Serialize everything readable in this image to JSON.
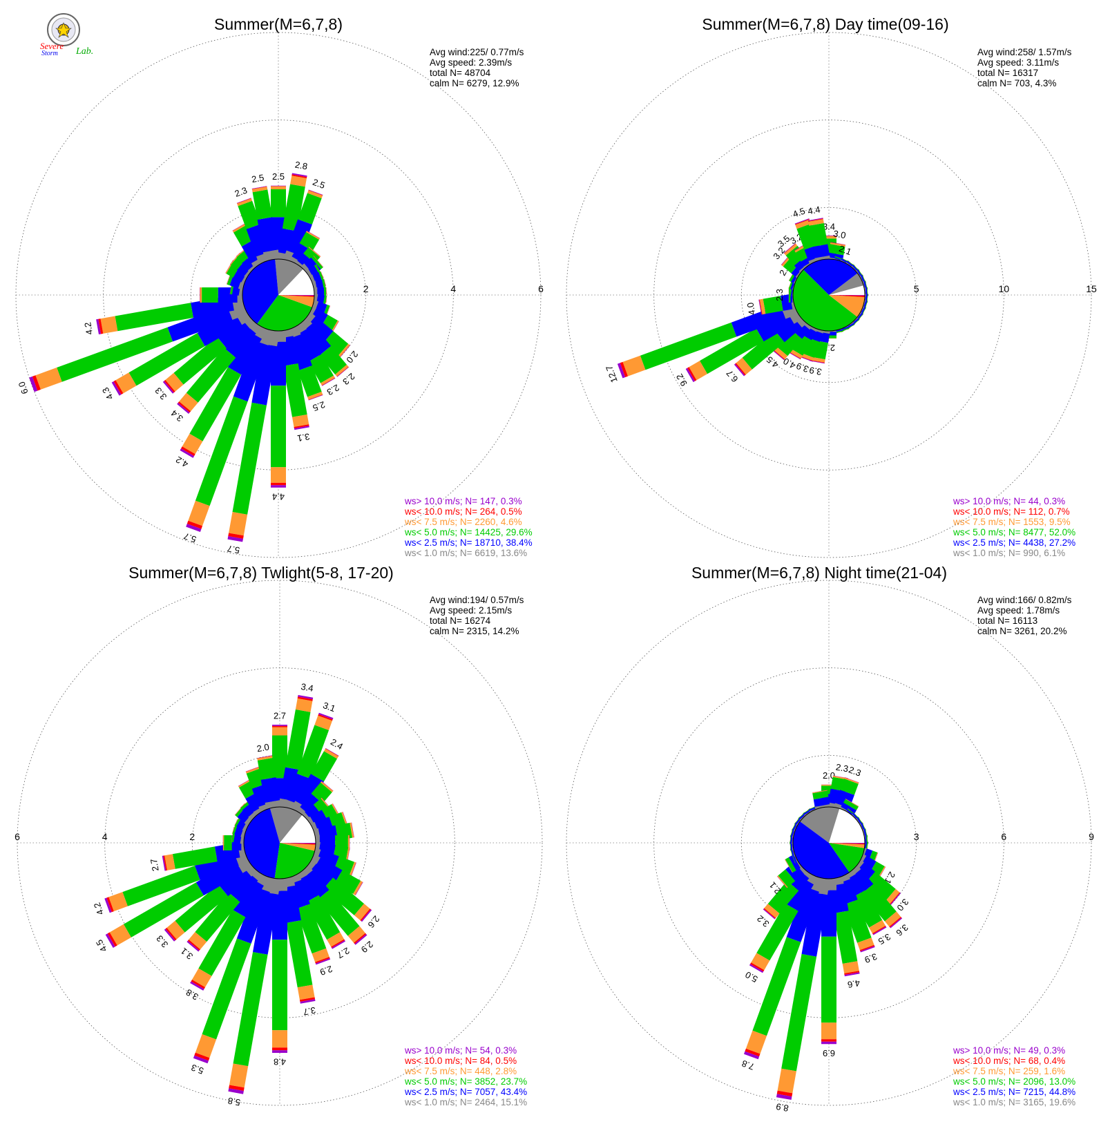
{
  "colors": {
    "gt10": "#9900cc",
    "lt10": "#ff0000",
    "lt7_5": "#ff9933",
    "lt5": "#00cc00",
    "lt2_5": "#0000ff",
    "lt1": "#888888",
    "calm": "#ffffff"
  },
  "logo": {
    "icon": "severe-storm-lab-seal-icon",
    "line1": "Severe",
    "line2": "Storm",
    "line3": "Lab."
  },
  "chart_data": [
    {
      "type": "wind-rose",
      "title": "Summer(M=6,7,8)",
      "panel": "top-left",
      "stats": [
        "Avg wind:225/ 0.77m/s",
        "Avg speed: 2.39m/s",
        "total N=     48704",
        "calm N=   6279,  12.9%"
      ],
      "ring_values": [
        2,
        4,
        6
      ],
      "ring_labels": [
        "2",
        "4",
        "6"
      ],
      "ring_label_side": "right",
      "max": 6,
      "legend": [
        "ws> 10.0 m/s; N=   147,  0.3%",
        "ws< 10.0 m/s; N=   264,  0.5%",
        "ws<  7.5 m/s; N=  2260,  4.6%",
        "ws<  5.0 m/s; N= 14425, 29.6%",
        "ws<  2.5 m/s; N= 18710, 38.4%",
        "ws<  1.0 m/s; N=  6619, 13.6%"
      ],
      "calm_pie": [
        6279,
        6619,
        18710,
        14425,
        2260,
        264,
        147
      ],
      "directions_deg": [
        0,
        10,
        20,
        30,
        40,
        50,
        60,
        70,
        80,
        90,
        100,
        110,
        120,
        130,
        140,
        150,
        160,
        170,
        180,
        190,
        200,
        210,
        220,
        230,
        240,
        250,
        260,
        270,
        280,
        290,
        300,
        310,
        320,
        330,
        340,
        350
      ],
      "totals": [
        2.5,
        2.8,
        2.5,
        1.6,
        1.3,
        1.2,
        1.1,
        1.1,
        1.1,
        1.1,
        1.1,
        1.2,
        1.5,
        2.0,
        2.3,
        2.3,
        2.5,
        3.1,
        4.4,
        5.7,
        5.7,
        4.2,
        3.4,
        3.3,
        4.3,
        6.0,
        4.2,
        1.8,
        1.1,
        1.2,
        1.3,
        1.3,
        1.3,
        1.8,
        2.3,
        2.5
      ],
      "bar_labels": [
        "2.5",
        "2.8",
        "2.5",
        "",
        "",
        "",
        "",
        "",
        "",
        "",
        "",
        "",
        "",
        "2.0",
        "2.3",
        "2.3",
        "2.5",
        "3.1",
        "4.4",
        "5.7",
        "5.7",
        "4.2",
        "3.4",
        "3.3",
        "4.3",
        "6.0",
        "4.2",
        "",
        "",
        "",
        "",
        "",
        "",
        "",
        "2.3",
        "2.5"
      ]
    },
    {
      "type": "wind-rose",
      "title": "Summer(M=6,7,8) Day time(09-16)",
      "panel": "top-right",
      "stats": [
        "Avg wind:258/ 1.57m/s",
        "Avg speed: 3.11m/s",
        "total N=     16317",
        "calm N=    703,   4.3%"
      ],
      "ring_values": [
        5,
        10,
        15
      ],
      "ring_labels": [
        "5",
        "10",
        "15"
      ],
      "ring_label_side": "right",
      "max": 15,
      "legend": [
        "ws> 10.0 m/s; N=    44,  0.3%",
        "ws< 10.0 m/s; N=   112,  0.7%",
        "ws<  7.5 m/s; N=  1553,  9.5%",
        "ws<  5.0 m/s; N=  8477, 52.0%",
        "ws<  2.5 m/s; N=  4438, 27.2%",
        "ws<  1.0 m/s; N=   990,  6.1%"
      ],
      "calm_pie": [
        703,
        990,
        4438,
        8477,
        1553,
        112,
        44
      ],
      "directions_deg": [
        0,
        10,
        20,
        30,
        40,
        50,
        60,
        70,
        80,
        90,
        100,
        110,
        120,
        130,
        140,
        150,
        160,
        170,
        180,
        190,
        200,
        210,
        220,
        230,
        240,
        250,
        260,
        270,
        280,
        290,
        300,
        310,
        320,
        330,
        340,
        350
      ],
      "totals": [
        3.4,
        3.0,
        2.1,
        1.2,
        0.9,
        0.7,
        0.6,
        0.6,
        0.6,
        0.6,
        0.5,
        0.6,
        0.7,
        0.8,
        0.9,
        1.1,
        1.4,
        1.8,
        2.5,
        3.9,
        3.9,
        4.0,
        4.5,
        6.7,
        9.2,
        12.7,
        4.0,
        2.3,
        2.2,
        2.3,
        2.4,
        3.2,
        3.5,
        3.2,
        4.5,
        4.4
      ],
      "bar_labels": [
        "3.4",
        "3.0",
        "2.1",
        "",
        "",
        "",
        "",
        "",
        "",
        "",
        "",
        "",
        "",
        "",
        "",
        "",
        "",
        "",
        "2.5",
        "3.9",
        "3.9",
        "4.0",
        "4.5",
        "6.7",
        "9.2",
        "12.7",
        "4.0",
        "2.3",
        "",
        "",
        "2.4",
        "3.2",
        "3.5",
        "3.2",
        "4.5",
        "4.4"
      ]
    },
    {
      "type": "wind-rose",
      "title": "Summer(M=6,7,8) Twlight(5-8, 17-20)",
      "panel": "bottom-left",
      "stats": [
        "Avg wind:194/ 0.57m/s",
        "Avg speed: 2.15m/s",
        "total N=     16274",
        "calm N=   2315,  14.2%"
      ],
      "ring_values": [
        2,
        4,
        6
      ],
      "ring_labels": [
        "2",
        "4",
        "6"
      ],
      "ring_label_side": "left",
      "max": 6,
      "legend": [
        "ws> 10.0 m/s; N=    54,  0.3%",
        "ws< 10.0 m/s; N=    84,  0.5%",
        "ws<  7.5 m/s; N=   448,  2.8%",
        "ws<  5.0 m/s; N=  3852, 23.7%",
        "ws<  2.5 m/s; N=  7057, 43.4%",
        "ws<  1.0 m/s; N=  2464, 15.1%"
      ],
      "calm_pie": [
        2315,
        2464,
        7057,
        3852,
        448,
        84,
        54
      ],
      "directions_deg": [
        0,
        10,
        20,
        30,
        40,
        50,
        60,
        70,
        80,
        90,
        100,
        110,
        120,
        130,
        140,
        150,
        160,
        170,
        180,
        190,
        200,
        210,
        220,
        230,
        240,
        250,
        260,
        270,
        280,
        290,
        300,
        310,
        320,
        330,
        340,
        350
      ],
      "totals": [
        2.7,
        3.4,
        3.1,
        2.4,
        1.7,
        1.4,
        1.5,
        1.6,
        1.7,
        1.6,
        1.6,
        1.8,
        2.1,
        2.6,
        2.9,
        2.7,
        2.9,
        3.7,
        4.8,
        5.8,
        5.3,
        3.8,
        3.1,
        3.3,
        4.5,
        4.2,
        2.7,
        1.3,
        1.1,
        1.1,
        1.1,
        1.2,
        1.2,
        1.6,
        1.8,
        2.0
      ],
      "bar_labels": [
        "2.7",
        "3.4",
        "3.1",
        "2.4",
        "",
        "",
        "",
        "",
        "",
        "",
        "",
        "",
        "",
        "2.6",
        "2.9",
        "2.7",
        "2.9",
        "3.7",
        "4.8",
        "5.8",
        "5.3",
        "3.8",
        "3.1",
        "3.3",
        "4.5",
        "4.2",
        "2.7",
        "",
        "",
        "",
        "",
        "",
        "",
        "",
        "",
        "2.0"
      ]
    },
    {
      "type": "wind-rose",
      "title": "Summer(M=6,7,8) Night time(21-04)",
      "panel": "bottom-right",
      "stats": [
        "Avg wind:166/ 0.82m/s",
        "Avg speed: 1.78m/s",
        "total N=     16113",
        "calm N=   3261,  20.2%"
      ],
      "ring_values": [
        3,
        6,
        9
      ],
      "ring_labels": [
        "3",
        "6",
        "9"
      ],
      "ring_label_side": "right",
      "max": 9,
      "legend": [
        "ws> 10.0 m/s; N=    49,  0.3%",
        "ws< 10.0 m/s; N=    68,  0.4%",
        "ws<  7.5 m/s; N=   259,  1.6%",
        "ws<  5.0 m/s; N=  2096, 13.0%",
        "ws<  2.5 m/s; N=  7215, 44.8%",
        "ws<  1.0 m/s; N=  3165, 19.6%"
      ],
      "calm_pie": [
        3261,
        3165,
        7215,
        2096,
        259,
        68,
        49
      ],
      "directions_deg": [
        0,
        10,
        20,
        30,
        40,
        50,
        60,
        70,
        80,
        90,
        100,
        110,
        120,
        130,
        140,
        150,
        160,
        170,
        180,
        190,
        200,
        210,
        220,
        230,
        240,
        250,
        260,
        270,
        280,
        290,
        300,
        310,
        320,
        330,
        340,
        350
      ],
      "totals": [
        2.0,
        2.3,
        2.3,
        1.6,
        1.3,
        1.1,
        1.0,
        1.1,
        1.2,
        1.3,
        1.3,
        1.7,
        2.1,
        3.0,
        3.6,
        3.5,
        3.9,
        4.6,
        6.9,
        8.9,
        7.8,
        5.0,
        3.2,
        2.1,
        1.6,
        1.2,
        1.0,
        0.9,
        0.8,
        0.9,
        0.9,
        1.0,
        1.0,
        1.1,
        1.2,
        1.8
      ],
      "bar_labels": [
        "2.0",
        "2.3",
        "2.3",
        "",
        "",
        "",
        "",
        "",
        "",
        "",
        "",
        "",
        "2.1",
        "3.0",
        "3.6",
        "3.5",
        "3.9",
        "4.6",
        "6.9",
        "8.9",
        "7.8",
        "5.0",
        "3.2",
        "2.1",
        "",
        "",
        "",
        "",
        "",
        "",
        "",
        "",
        "",
        "",
        "",
        ""
      ]
    }
  ]
}
